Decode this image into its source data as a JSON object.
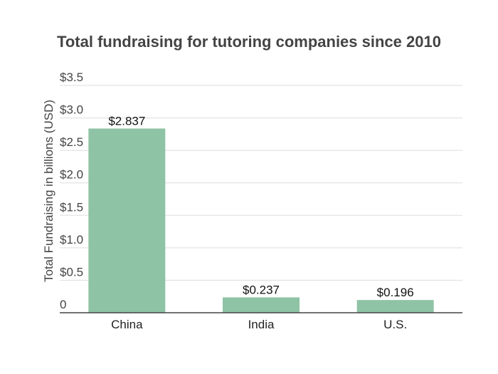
{
  "chart_data": {
    "type": "bar",
    "title": "Total fundraising for tutoring companies since 2010",
    "xlabel": "",
    "ylabel": "Total Fundraising in billions (USD)",
    "categories": [
      "China",
      "India",
      "U.S."
    ],
    "values": [
      2.837,
      0.237,
      0.196
    ],
    "value_labels": [
      "$2.837",
      "$0.237",
      "$0.196"
    ],
    "ylim": [
      0,
      3.5
    ],
    "yticks": [
      0,
      0.5,
      1.0,
      1.5,
      2.0,
      2.5,
      3.0,
      3.5
    ],
    "ytick_labels": [
      "0",
      "$0.5",
      "$1.0",
      "$1.5",
      "$2.0",
      "$2.5",
      "$3.0",
      "$3.5"
    ],
    "grid": true,
    "legend": "none",
    "colors": {
      "bar": "#8fc3a5",
      "grid": "#dddddd",
      "axis": "#444444"
    }
  }
}
